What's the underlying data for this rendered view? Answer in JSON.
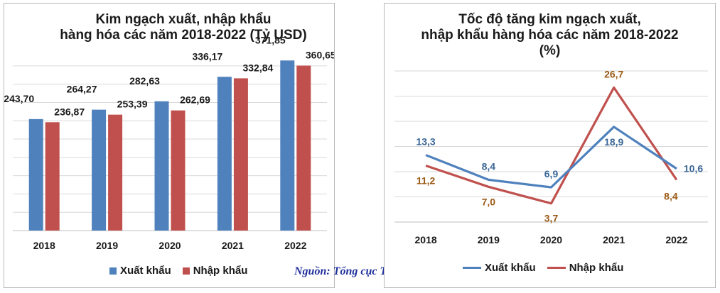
{
  "colors": {
    "export": "#4f81bd",
    "import": "#c0504d",
    "export_label": "#3b6796",
    "import_label": "#9c5a16",
    "grid": "#d9d9d9",
    "source": "#1f2f9c"
  },
  "source_note": "Nguồn: Tổng cục Thống kê",
  "chart_data": [
    {
      "type": "bar",
      "title": "Kim ngạch xuất, nhập khẩu\nhàng hóa các năm 2018-2022 (Tỷ USD)",
      "title_lines": [
        "Kim ngạch xuất, nhập khẩu",
        "hàng hóa các năm 2018-2022 (Tỷ USD)"
      ],
      "categories": [
        "2018",
        "2019",
        "2020",
        "2021",
        "2022"
      ],
      "series": [
        {
          "name": "Xuất khẩu",
          "values": [
            243.7,
            264.27,
            282.63,
            336.17,
            371.85
          ],
          "labels": [
            "243,70",
            "264,27",
            "282,63",
            "336,17",
            "371,85"
          ]
        },
        {
          "name": "Nhập khẩu",
          "values": [
            236.87,
            253.39,
            262.69,
            332.84,
            360.65
          ],
          "labels": [
            "236,87",
            "253,39",
            "262,69",
            "332,84",
            "360,65"
          ]
        }
      ],
      "ylim": [
        0,
        380
      ],
      "grid": true,
      "legend": "bottom",
      "xlabel": "",
      "ylabel": ""
    },
    {
      "type": "line",
      "title": "Tốc độ tăng kim ngạch xuất,\nnhập khẩu hàng hóa các năm 2018-2022\n(%)",
      "title_lines": [
        "Tốc độ tăng kim ngạch xuất,",
        "nhập khẩu hàng hóa các năm 2018-2022",
        "(%)"
      ],
      "categories": [
        "2018",
        "2019",
        "2020",
        "2021",
        "2022"
      ],
      "series": [
        {
          "name": "Xuất khẩu",
          "values": [
            13.3,
            8.4,
            6.9,
            18.9,
            10.6
          ],
          "labels": [
            "13,3",
            "8,4",
            "6,9",
            "18,9",
            "10,6"
          ]
        },
        {
          "name": "Nhập khẩu",
          "values": [
            11.2,
            7.0,
            3.7,
            26.7,
            8.4
          ],
          "labels": [
            "11,2",
            "7,0",
            "3,7",
            "26,7",
            "8,4"
          ]
        }
      ],
      "ylim": [
        0,
        30
      ],
      "grid": true,
      "legend": "bottom",
      "xlabel": "",
      "ylabel": ""
    }
  ]
}
